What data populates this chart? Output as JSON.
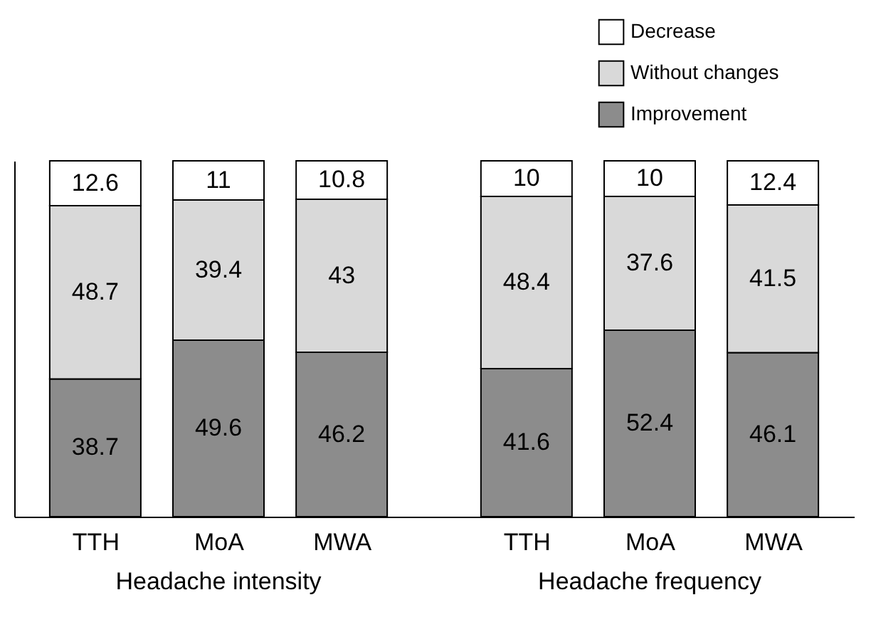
{
  "chart_data": {
    "type": "bar",
    "stacked": true,
    "data_labels": true,
    "legend": "top right",
    "grid": false,
    "categories": [
      "TTH",
      "MoA",
      "MWA",
      "TTH",
      "MoA",
      "MWA"
    ],
    "series": [
      {
        "name": "Improvement",
        "color": "#8c8c8c",
        "values": [
          38.7,
          49.6,
          46.2,
          41.6,
          52.4,
          46.1
        ]
      },
      {
        "name": "Without changes",
        "color": "#d9d9d9",
        "values": [
          48.7,
          39.4,
          43,
          48.4,
          37.6,
          41.5
        ]
      },
      {
        "name": "Decrease",
        "color": "#ffffff",
        "values": [
          12.6,
          11,
          10.8,
          10,
          10,
          12.4
        ]
      }
    ],
    "annotations": [
      "Headache intensity",
      "Headache frequency"
    ]
  }
}
